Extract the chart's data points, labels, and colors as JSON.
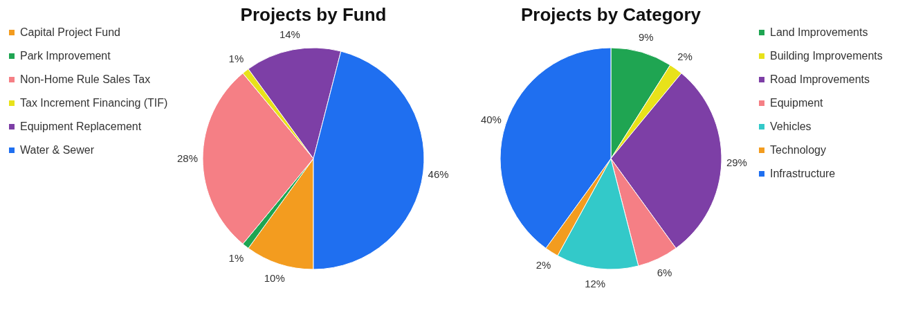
{
  "chart_data": [
    {
      "type": "pie",
      "title": "Projects by Fund",
      "categories": [
        "Capital Project Fund",
        "Park Improvement",
        "Non-Home Rule Sales Tax",
        "Tax Increment Financing (TIF)",
        "Equipment Replacement",
        "Water & Sewer"
      ],
      "values": [
        10,
        1,
        28,
        1,
        14,
        46
      ],
      "value_labels": [
        "10%",
        "1%",
        "28%",
        "1%",
        "14%",
        "46%"
      ],
      "colors": [
        "#f39c1f",
        "#1fa552",
        "#f57f85",
        "#e8e21a",
        "#7d3fa6",
        "#1f6ff0"
      ],
      "legend": "left"
    },
    {
      "type": "pie",
      "title": "Projects by Category",
      "categories": [
        "Land Improvements",
        "Building Improvements",
        "Road Improvements",
        "Equipment",
        "Vehicles",
        "Technology",
        "Infrastructure"
      ],
      "values": [
        9,
        2,
        29,
        6,
        12,
        2,
        40
      ],
      "value_labels": [
        "9%",
        "2%",
        "29%",
        "6%",
        "12%",
        "2%",
        "40%"
      ],
      "colors": [
        "#1fa552",
        "#e8e21a",
        "#7d3fa6",
        "#f57f85",
        "#33c9c9",
        "#f39c1f",
        "#1f6ff0"
      ],
      "legend": "right"
    }
  ]
}
